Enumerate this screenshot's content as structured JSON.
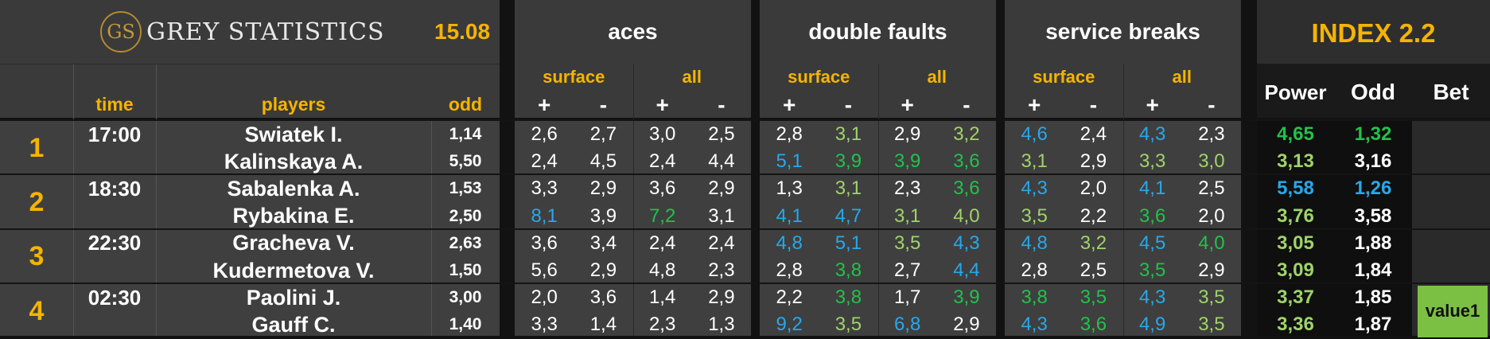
{
  "brand": {
    "logo_text": "GS",
    "name": "GREY STATISTICS",
    "date": "15.08"
  },
  "groups": {
    "aces": "aces",
    "double_faults": "double faults",
    "service_breaks": "service breaks"
  },
  "index_title": "INDEX 2.2",
  "sub": {
    "surface": "surface",
    "all": "all",
    "plus": "+",
    "minus": "-"
  },
  "cols": {
    "time": "time",
    "players": "players",
    "odd": "odd",
    "power": "Power",
    "idx_odd": "Odd",
    "bet": "Bet"
  },
  "colors": {
    "white": "#ffffff",
    "green": "#21c24a",
    "lgreen": "#9fd36a",
    "blue": "#27a8ea",
    "gold": "#f5b400"
  },
  "matches": [
    {
      "no": "1",
      "time": "17:00",
      "bet": "",
      "players": [
        {
          "name": "Swiatek I.",
          "odd": "1,14",
          "stats": [
            [
              "2,6",
              "white"
            ],
            [
              "2,7",
              "white"
            ],
            [
              "3,0",
              "white"
            ],
            [
              "2,5",
              "white"
            ],
            [
              "2,8",
              "white"
            ],
            [
              "3,1",
              "lgreen"
            ],
            [
              "2,9",
              "white"
            ],
            [
              "3,2",
              "lgreen"
            ],
            [
              "4,6",
              "blue"
            ],
            [
              "2,4",
              "white"
            ],
            [
              "4,3",
              "blue"
            ],
            [
              "2,3",
              "white"
            ]
          ],
          "power": [
            "4,65",
            "green"
          ],
          "idx_odd": [
            "1,32",
            "green"
          ]
        },
        {
          "name": "Kalinskaya A.",
          "odd": "5,50",
          "stats": [
            [
              "2,4",
              "white"
            ],
            [
              "4,5",
              "white"
            ],
            [
              "2,4",
              "white"
            ],
            [
              "4,4",
              "white"
            ],
            [
              "5,1",
              "blue"
            ],
            [
              "3,9",
              "green"
            ],
            [
              "3,9",
              "green"
            ],
            [
              "3,6",
              "green"
            ],
            [
              "3,1",
              "lgreen"
            ],
            [
              "2,9",
              "white"
            ],
            [
              "3,3",
              "lgreen"
            ],
            [
              "3,0",
              "lgreen"
            ]
          ],
          "power": [
            "3,13",
            "lgreen"
          ],
          "idx_odd": [
            "3,16",
            "white"
          ]
        }
      ]
    },
    {
      "no": "2",
      "time": "18:30",
      "bet": "",
      "players": [
        {
          "name": "Sabalenka A.",
          "odd": "1,53",
          "stats": [
            [
              "3,3",
              "white"
            ],
            [
              "2,9",
              "white"
            ],
            [
              "3,6",
              "white"
            ],
            [
              "2,9",
              "white"
            ],
            [
              "1,3",
              "white"
            ],
            [
              "3,1",
              "lgreen"
            ],
            [
              "2,3",
              "white"
            ],
            [
              "3,6",
              "green"
            ],
            [
              "4,3",
              "blue"
            ],
            [
              "2,0",
              "white"
            ],
            [
              "4,1",
              "blue"
            ],
            [
              "2,5",
              "white"
            ]
          ],
          "power": [
            "5,58",
            "blue"
          ],
          "idx_odd": [
            "1,26",
            "blue"
          ]
        },
        {
          "name": "Rybakina E.",
          "odd": "2,50",
          "stats": [
            [
              "8,1",
              "blue"
            ],
            [
              "3,9",
              "white"
            ],
            [
              "7,2",
              "green"
            ],
            [
              "3,1",
              "white"
            ],
            [
              "4,1",
              "blue"
            ],
            [
              "4,7",
              "blue"
            ],
            [
              "3,1",
              "lgreen"
            ],
            [
              "4,0",
              "lgreen"
            ],
            [
              "3,5",
              "lgreen"
            ],
            [
              "2,2",
              "white"
            ],
            [
              "3,6",
              "green"
            ],
            [
              "2,0",
              "white"
            ]
          ],
          "power": [
            "3,76",
            "lgreen"
          ],
          "idx_odd": [
            "3,58",
            "white"
          ]
        }
      ]
    },
    {
      "no": "3",
      "time": "22:30",
      "bet": "",
      "players": [
        {
          "name": "Gracheva V.",
          "odd": "2,63",
          "stats": [
            [
              "3,6",
              "white"
            ],
            [
              "3,4",
              "white"
            ],
            [
              "2,4",
              "white"
            ],
            [
              "2,4",
              "white"
            ],
            [
              "4,8",
              "blue"
            ],
            [
              "5,1",
              "blue"
            ],
            [
              "3,5",
              "lgreen"
            ],
            [
              "4,3",
              "blue"
            ],
            [
              "4,8",
              "blue"
            ],
            [
              "3,2",
              "lgreen"
            ],
            [
              "4,5",
              "blue"
            ],
            [
              "4,0",
              "green"
            ]
          ],
          "power": [
            "3,05",
            "lgreen"
          ],
          "idx_odd": [
            "1,88",
            "white"
          ]
        },
        {
          "name": "Kudermetova V.",
          "odd": "1,50",
          "stats": [
            [
              "5,6",
              "white"
            ],
            [
              "2,9",
              "white"
            ],
            [
              "4,8",
              "white"
            ],
            [
              "2,3",
              "white"
            ],
            [
              "2,8",
              "white"
            ],
            [
              "3,8",
              "green"
            ],
            [
              "2,7",
              "white"
            ],
            [
              "4,4",
              "blue"
            ],
            [
              "2,8",
              "white"
            ],
            [
              "2,5",
              "white"
            ],
            [
              "3,5",
              "green"
            ],
            [
              "2,9",
              "white"
            ]
          ],
          "power": [
            "3,09",
            "lgreen"
          ],
          "idx_odd": [
            "1,84",
            "white"
          ]
        }
      ]
    },
    {
      "no": "4",
      "time": "02:30",
      "bet": "value1",
      "players": [
        {
          "name": "Paolini J.",
          "odd": "3,00",
          "stats": [
            [
              "2,0",
              "white"
            ],
            [
              "3,6",
              "white"
            ],
            [
              "1,4",
              "white"
            ],
            [
              "2,9",
              "white"
            ],
            [
              "2,2",
              "white"
            ],
            [
              "3,8",
              "green"
            ],
            [
              "1,7",
              "white"
            ],
            [
              "3,9",
              "green"
            ],
            [
              "3,8",
              "green"
            ],
            [
              "3,5",
              "green"
            ],
            [
              "4,3",
              "blue"
            ],
            [
              "3,5",
              "lgreen"
            ]
          ],
          "power": [
            "3,37",
            "lgreen"
          ],
          "idx_odd": [
            "1,85",
            "white"
          ]
        },
        {
          "name": "Gauff C.",
          "odd": "1,40",
          "stats": [
            [
              "3,3",
              "white"
            ],
            [
              "1,4",
              "white"
            ],
            [
              "2,3",
              "white"
            ],
            [
              "1,3",
              "white"
            ],
            [
              "9,2",
              "blue"
            ],
            [
              "3,5",
              "lgreen"
            ],
            [
              "6,8",
              "blue"
            ],
            [
              "2,9",
              "white"
            ],
            [
              "4,3",
              "blue"
            ],
            [
              "3,6",
              "green"
            ],
            [
              "4,9",
              "blue"
            ],
            [
              "3,5",
              "lgreen"
            ]
          ],
          "power": [
            "3,36",
            "lgreen"
          ],
          "idx_odd": [
            "1,87",
            "white"
          ]
        }
      ]
    }
  ]
}
